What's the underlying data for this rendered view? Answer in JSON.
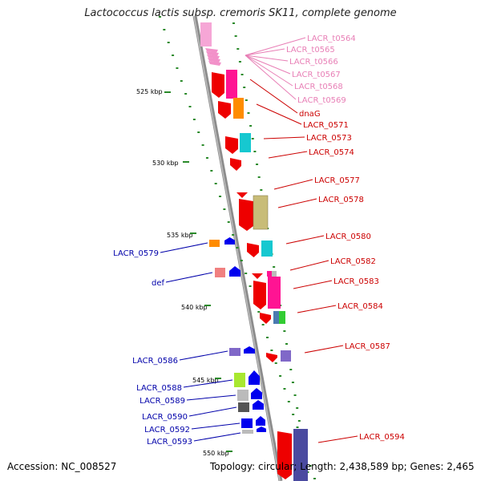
{
  "title": "Lactococcus lactis subsp. cremoris SK11, complete genome",
  "footer": {
    "accession": "Accession: NC_008527",
    "topology": "Topology: circular; Length: 2,438,589 bp; Genes: 2,465"
  },
  "colors": {
    "backbone": "#8c8c8c",
    "ruler_dots": "#2a8a2a",
    "trna_label": "#e87fb6",
    "plus_label": "#cc0000",
    "minus_label": "#0000aa"
  },
  "scale_marks": [
    {
      "kbp": 525,
      "label": "525 kbp"
    },
    {
      "kbp": 530,
      "label": "530 kbp"
    },
    {
      "kbp": 535,
      "label": "535 kbp"
    },
    {
      "kbp": 540,
      "label": "540 kbp"
    },
    {
      "kbp": 545,
      "label": "545 kbp"
    },
    {
      "kbp": 550,
      "label": "550 kbp"
    }
  ],
  "labels_right": [
    {
      "text": "LACR_t0564",
      "kind": "trna"
    },
    {
      "text": "LACR_t0565",
      "kind": "trna"
    },
    {
      "text": "LACR_t0566",
      "kind": "trna"
    },
    {
      "text": "LACR_t0567",
      "kind": "trna"
    },
    {
      "text": "LACR_t0568",
      "kind": "trna"
    },
    {
      "text": "LACR_t0569",
      "kind": "trna"
    },
    {
      "text": "dnaG",
      "kind": "plus"
    },
    {
      "text": "LACR_0571",
      "kind": "plus"
    },
    {
      "text": "LACR_0573",
      "kind": "plus"
    },
    {
      "text": "LACR_0574",
      "kind": "plus"
    },
    {
      "text": "LACR_0577",
      "kind": "plus"
    },
    {
      "text": "LACR_0578",
      "kind": "plus"
    },
    {
      "text": "LACR_0580",
      "kind": "plus"
    },
    {
      "text": "LACR_0582",
      "kind": "plus"
    },
    {
      "text": "LACR_0583",
      "kind": "plus"
    },
    {
      "text": "LACR_0584",
      "kind": "plus"
    },
    {
      "text": "LACR_0587",
      "kind": "plus"
    },
    {
      "text": "LACR_0594",
      "kind": "plus"
    }
  ],
  "labels_left": [
    {
      "text": "LACR_0579"
    },
    {
      "text": "def"
    },
    {
      "text": "LACR_0586"
    },
    {
      "text": "LACR_0588"
    },
    {
      "text": "LACR_0589"
    },
    {
      "text": "LACR_0590"
    },
    {
      "text": "LACR_0592"
    },
    {
      "text": "LACR_0593"
    }
  ]
}
